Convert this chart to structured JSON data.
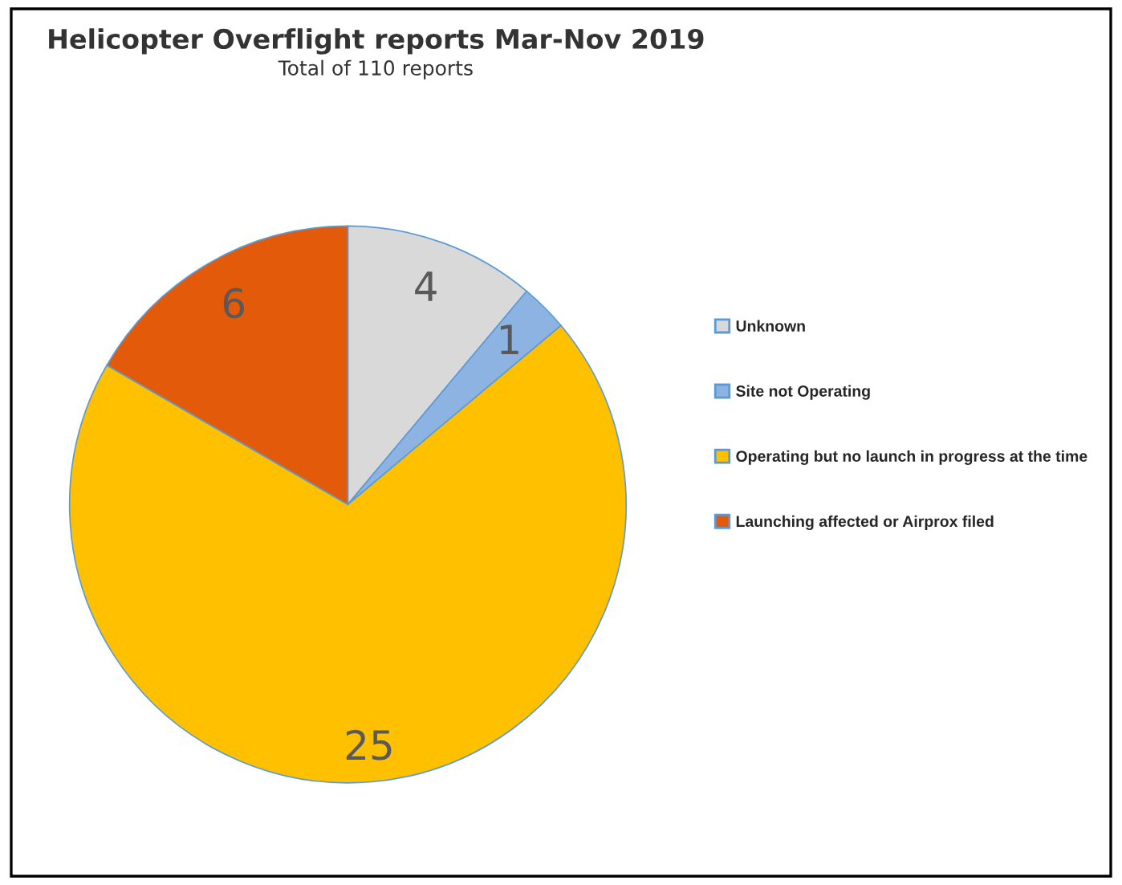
{
  "chart_data": {
    "type": "pie",
    "title": "Helicopter Overflight reports Mar-Nov 2019",
    "subtitle": "Total of 110 reports",
    "categories": [
      "Unknown",
      "Site not Operating",
      "Operating but no launch in progress at the time",
      "Launching affected or Airprox filed"
    ],
    "values": [
      4,
      1,
      25,
      6
    ],
    "colors": [
      "#d9d9d9",
      "#8db3e2",
      "#ffc000",
      "#e35a0a"
    ],
    "data_labels": true,
    "legend": "right"
  }
}
